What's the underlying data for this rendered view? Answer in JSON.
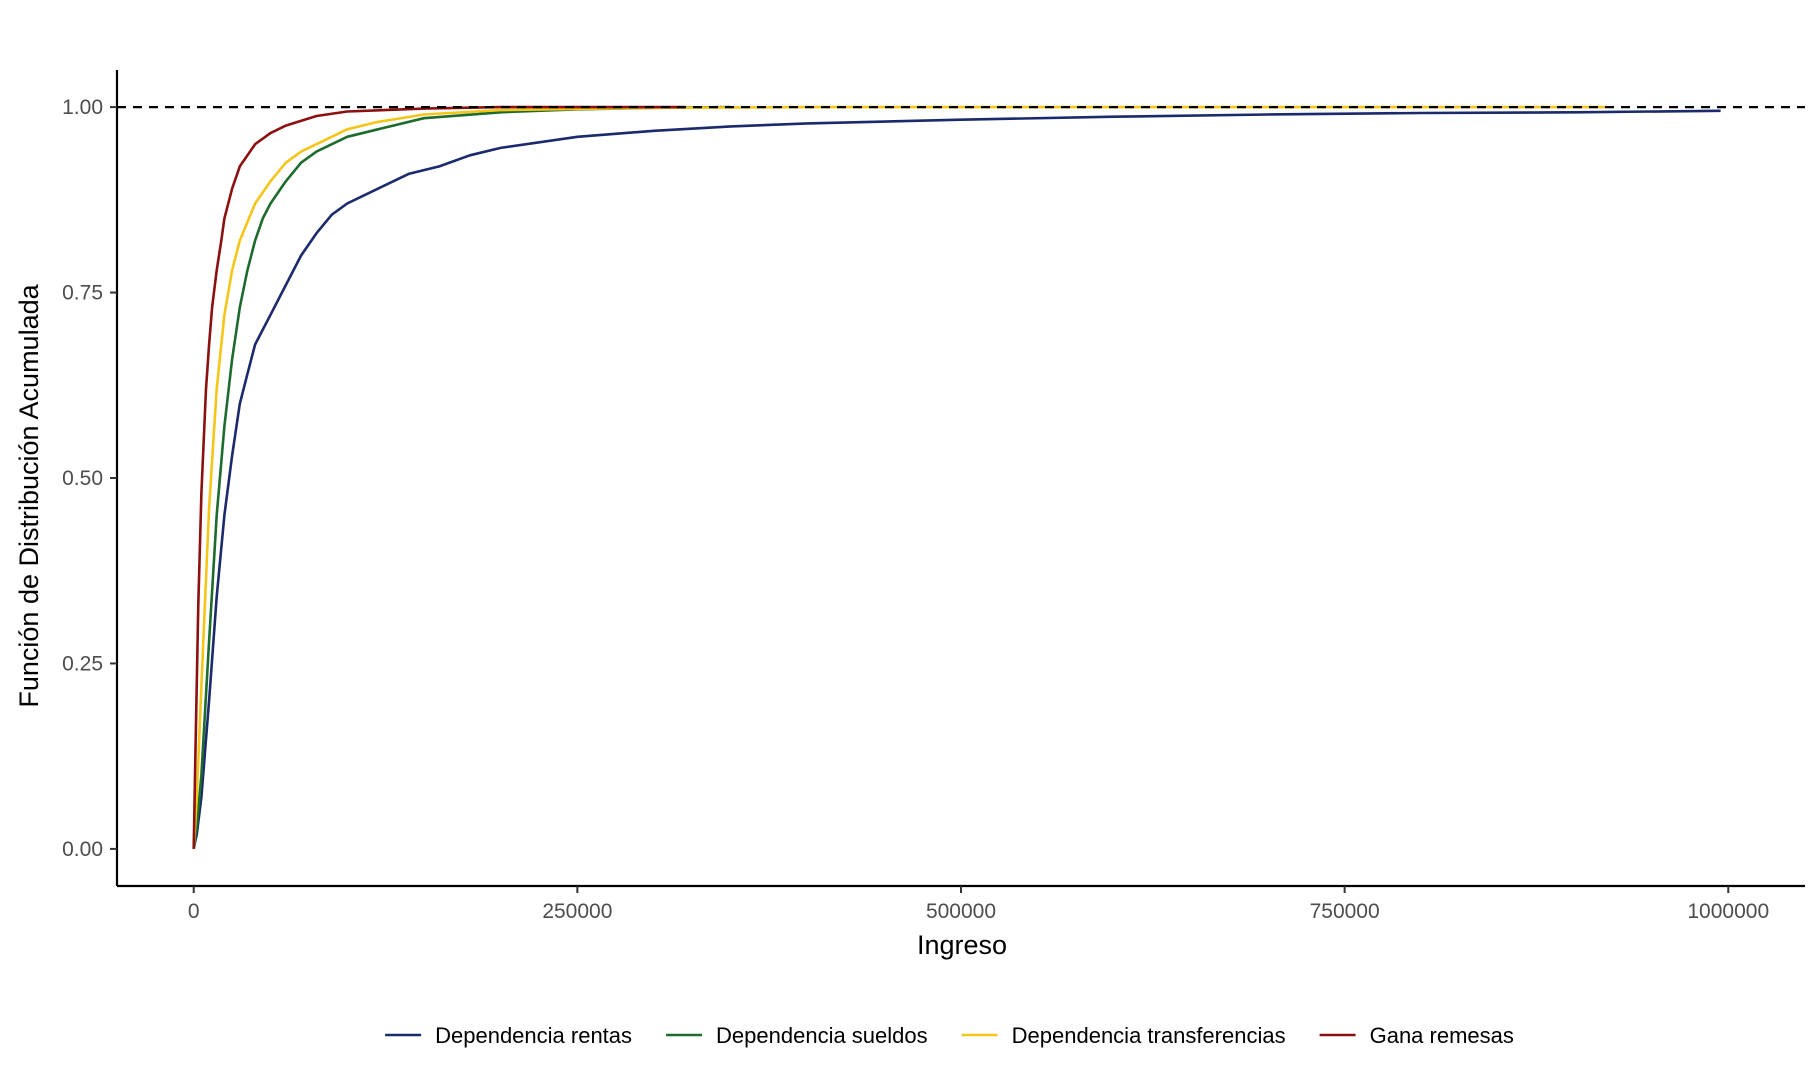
{
  "chart_data": {
    "type": "line",
    "title": "",
    "xlabel": "Ingreso",
    "ylabel": "Función de Distribución Acumulada",
    "xlim": [
      -50000,
      1050000
    ],
    "ylim": [
      -0.05,
      1.05
    ],
    "x_ticks": [
      0,
      250000,
      500000,
      750000,
      1000000
    ],
    "x_tick_labels": [
      "0",
      "250000",
      "500000",
      "750000",
      "1000000"
    ],
    "y_ticks": [
      0,
      0.25,
      0.5,
      0.75,
      1.0
    ],
    "y_tick_labels": [
      "0.00",
      "0.25",
      "0.50",
      "0.75",
      "1.00"
    ],
    "reference_line": {
      "y": 1.0,
      "style": "dashed",
      "color": "#000000"
    },
    "grid": false,
    "legend_position": "bottom",
    "series": [
      {
        "name": "Dependencia rentas",
        "color": "#1a2a6c",
        "x": [
          0,
          2000,
          5000,
          10000,
          15000,
          20000,
          25000,
          30000,
          35000,
          40000,
          45000,
          50000,
          60000,
          70000,
          80000,
          90000,
          100000,
          120000,
          140000,
          160000,
          180000,
          200000,
          250000,
          300000,
          350000,
          400000,
          500000,
          600000,
          700000,
          800000,
          900000,
          995000
        ],
        "y": [
          0.0,
          0.02,
          0.07,
          0.2,
          0.34,
          0.45,
          0.53,
          0.6,
          0.64,
          0.68,
          0.7,
          0.72,
          0.76,
          0.8,
          0.83,
          0.855,
          0.87,
          0.89,
          0.91,
          0.92,
          0.935,
          0.945,
          0.96,
          0.968,
          0.974,
          0.978,
          0.983,
          0.987,
          0.99,
          0.992,
          0.993,
          0.995
        ]
      },
      {
        "name": "Dependencia sueldos",
        "color": "#1e6b2e",
        "x": [
          0,
          2000,
          5000,
          10000,
          15000,
          20000,
          25000,
          30000,
          35000,
          40000,
          45000,
          50000,
          60000,
          70000,
          80000,
          100000,
          120000,
          150000,
          200000,
          250000,
          300000,
          350000
        ],
        "y": [
          0.0,
          0.03,
          0.1,
          0.28,
          0.45,
          0.57,
          0.66,
          0.73,
          0.78,
          0.82,
          0.85,
          0.87,
          0.9,
          0.925,
          0.94,
          0.96,
          0.97,
          0.985,
          0.993,
          0.997,
          0.999,
          1.0
        ]
      },
      {
        "name": "Dependencia transferencias",
        "color": "#f5c518",
        "x": [
          0,
          2000,
          5000,
          10000,
          15000,
          20000,
          25000,
          30000,
          40000,
          50000,
          60000,
          70000,
          80000,
          100000,
          120000,
          150000,
          200000,
          300000,
          400000,
          600000,
          920000
        ],
        "y": [
          0.0,
          0.07,
          0.22,
          0.46,
          0.62,
          0.72,
          0.78,
          0.82,
          0.87,
          0.9,
          0.925,
          0.94,
          0.95,
          0.97,
          0.98,
          0.99,
          0.996,
          0.999,
          1.0,
          1.0,
          1.0
        ]
      },
      {
        "name": "Gana remesas",
        "color": "#8b1010",
        "x": [
          0,
          1000,
          3000,
          5000,
          8000,
          10000,
          12000,
          15000,
          18000,
          20000,
          25000,
          30000,
          40000,
          50000,
          60000,
          80000,
          100000,
          150000,
          200000,
          320000
        ],
        "y": [
          0.0,
          0.12,
          0.33,
          0.48,
          0.62,
          0.68,
          0.73,
          0.78,
          0.82,
          0.85,
          0.89,
          0.92,
          0.95,
          0.965,
          0.975,
          0.988,
          0.994,
          0.998,
          1.0,
          1.0
        ]
      }
    ]
  }
}
